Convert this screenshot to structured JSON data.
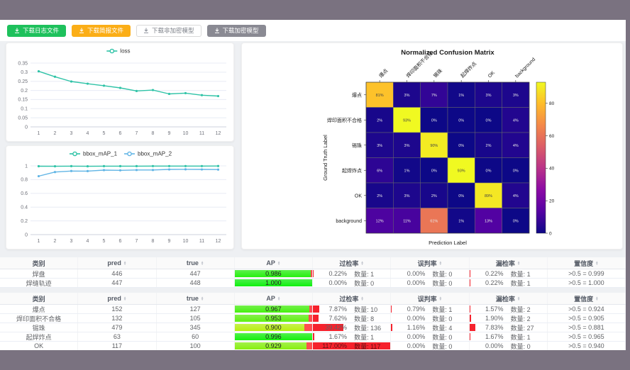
{
  "frame": {
    "outer_bg": "#7a7280",
    "content_bg": "#eef0f3"
  },
  "toolbar": {
    "buttons": [
      {
        "label": "下载日志文件",
        "variant": "green",
        "icon": "download-icon"
      },
      {
        "label": "下载简报文件",
        "variant": "orange",
        "icon": "download-icon"
      },
      {
        "label": "下载非加密模型",
        "variant": "plain",
        "icon": "download-icon"
      },
      {
        "label": "下载加密模型",
        "variant": "gray",
        "icon": "download-icon"
      }
    ]
  },
  "colors": {
    "teal_series": "#2fc3a7",
    "blue_series": "#62b5e5",
    "bar_red": "#f5222d",
    "grid_line": "#e8ecf4",
    "axis_text": "#6E7079"
  },
  "chart_data": [
    {
      "type": "line",
      "title": "loss",
      "legend": [
        "loss"
      ],
      "legend_position": "top",
      "grid": true,
      "x": [
        1,
        2,
        3,
        4,
        5,
        6,
        7,
        8,
        9,
        10,
        11,
        12
      ],
      "series": [
        {
          "name": "loss",
          "color": "#2fc3a7",
          "values": [
            0.305,
            0.275,
            0.249,
            0.237,
            0.226,
            0.214,
            0.197,
            0.202,
            0.181,
            0.185,
            0.174,
            0.169
          ]
        }
      ],
      "ylim": [
        0,
        0.35
      ],
      "yticks": [
        0,
        0.05,
        0.1,
        0.15,
        0.2,
        0.25,
        0.3,
        0.35
      ]
    },
    {
      "type": "line",
      "title": "bbox_mAP",
      "legend": [
        "bbox_mAP_1",
        "bbox_mAP_2"
      ],
      "legend_position": "top",
      "grid": true,
      "x": [
        1,
        2,
        3,
        4,
        5,
        6,
        7,
        8,
        9,
        10,
        11,
        12
      ],
      "series": [
        {
          "name": "bbox_mAP_1",
          "color": "#2fc3a7",
          "values": [
            0.995,
            0.994,
            0.996,
            0.994,
            0.996,
            0.996,
            0.996,
            0.997,
            0.997,
            0.997,
            0.997,
            0.998
          ]
        },
        {
          "name": "bbox_mAP_2",
          "color": "#62b5e5",
          "values": [
            0.85,
            0.91,
            0.925,
            0.924,
            0.938,
            0.935,
            0.94,
            0.94,
            0.948,
            0.95,
            0.948,
            0.946
          ]
        }
      ],
      "ylim": [
        0,
        1
      ],
      "yticks": [
        0,
        0.2,
        0.4,
        0.6,
        0.8,
        1
      ]
    },
    {
      "type": "heatmap",
      "title": "Normalized Confusion Matrix",
      "xlabel": "Prediction Label",
      "ylabel": "Ground Truth Label",
      "colormap": "plasma",
      "vmax": 93,
      "colorbar_ticks": [
        0,
        20,
        40,
        60,
        80
      ],
      "categories": [
        "爆点",
        "焊印面积不合格",
        "锡珠",
        "起焊炸点",
        "OK",
        "background"
      ],
      "matrix": [
        [
          81,
          3,
          7,
          1,
          3,
          3
        ],
        [
          2,
          93,
          0,
          0,
          0,
          4
        ],
        [
          3,
          3,
          90,
          0,
          2,
          4
        ],
        [
          6,
          1,
          0,
          93,
          0,
          0
        ],
        [
          2,
          3,
          2,
          0,
          89,
          4
        ],
        [
          12,
          11,
          61,
          1,
          13,
          0
        ]
      ]
    }
  ],
  "tables": [
    {
      "headers": [
        {
          "label": "类别",
          "sortable": false
        },
        {
          "label": "pred",
          "sortable": true
        },
        {
          "label": "true",
          "sortable": true
        },
        {
          "label": "AP",
          "sortable": true
        },
        {
          "label": "过检率",
          "sortable": true
        },
        {
          "label": "误判率",
          "sortable": true
        },
        {
          "label": "漏检率",
          "sortable": true
        },
        {
          "label": "置信度",
          "sortable": true
        }
      ],
      "count_prefix": "数量:",
      "rows": [
        {
          "label": "焊盘",
          "pred": "446",
          "true": "447",
          "ap": "0.986",
          "ap_val": 0.986,
          "over_pct": "0.22%",
          "over_cnt": "1",
          "over_val": 0.22,
          "mis_pct": "0.00%",
          "mis_cnt": "0",
          "mis_val": 0,
          "miss_pct": "0.22%",
          "miss_cnt": "1",
          "miss_val": 0.22,
          "conf": ">0.5 = 0.999"
        },
        {
          "label": "焊缝轨迹",
          "pred": "447",
          "true": "448",
          "ap": "1.000",
          "ap_val": 1.0,
          "over_pct": "0.00%",
          "over_cnt": "0",
          "over_val": 0,
          "mis_pct": "0.00%",
          "mis_cnt": "0",
          "mis_val": 0,
          "miss_pct": "0.22%",
          "miss_cnt": "1",
          "miss_val": 0.22,
          "conf": ">0.5 = 1.000"
        }
      ]
    },
    {
      "headers": [
        {
          "label": "类别",
          "sortable": false
        },
        {
          "label": "pred",
          "sortable": true
        },
        {
          "label": "true",
          "sortable": true
        },
        {
          "label": "AP",
          "sortable": true
        },
        {
          "label": "过检率",
          "sortable": true
        },
        {
          "label": "误判率",
          "sortable": true
        },
        {
          "label": "漏检率",
          "sortable": true
        },
        {
          "label": "置信度",
          "sortable": true
        }
      ],
      "count_prefix": "数量:",
      "rows": [
        {
          "label": "爆点",
          "pred": "152",
          "true": "127",
          "ap": "0.967",
          "ap_val": 0.967,
          "over_pct": "7.87%",
          "over_cnt": "10",
          "over_val": 7.87,
          "mis_pct": "0.79%",
          "mis_cnt": "1",
          "mis_val": 0.79,
          "miss_pct": "1.57%",
          "miss_cnt": "2",
          "miss_val": 1.57,
          "conf": ">0.5 = 0.924"
        },
        {
          "label": "焊印面积不合格",
          "pred": "132",
          "true": "105",
          "ap": "0.953",
          "ap_val": 0.953,
          "over_pct": "7.62%",
          "over_cnt": "8",
          "over_val": 7.62,
          "mis_pct": "0.00%",
          "mis_cnt": "0",
          "mis_val": 0,
          "miss_pct": "1.90%",
          "miss_cnt": "2",
          "miss_val": 1.9,
          "conf": ">0.5 = 0.905"
        },
        {
          "label": "锡珠",
          "pred": "479",
          "true": "345",
          "ap": "0.900",
          "ap_val": 0.9,
          "over_pct": "39.42%",
          "over_cnt": "136",
          "over_val": 39.42,
          "mis_pct": "1.16%",
          "mis_cnt": "4",
          "mis_val": 1.16,
          "miss_pct": "7.83%",
          "miss_cnt": "27",
          "miss_val": 7.83,
          "conf": ">0.5 = 0.881"
        },
        {
          "label": "起焊炸点",
          "pred": "63",
          "true": "60",
          "ap": "0.996",
          "ap_val": 0.996,
          "over_pct": "1.67%",
          "over_cnt": "1",
          "over_val": 1.67,
          "mis_pct": "0.00%",
          "mis_cnt": "0",
          "mis_val": 0,
          "miss_pct": "1.67%",
          "miss_cnt": "1",
          "miss_val": 1.67,
          "conf": ">0.5 = 0.965"
        },
        {
          "label": "OK",
          "pred": "117",
          "true": "100",
          "ap": "0.929",
          "ap_val": 0.929,
          "over_pct": "117.00%",
          "over_cnt": "117",
          "over_val": 117,
          "mis_pct": "0.00%",
          "mis_cnt": "0",
          "mis_val": 0,
          "miss_pct": "0.00%",
          "miss_cnt": "0",
          "miss_val": 0,
          "conf": ">0.5 = 0.940"
        }
      ]
    }
  ]
}
